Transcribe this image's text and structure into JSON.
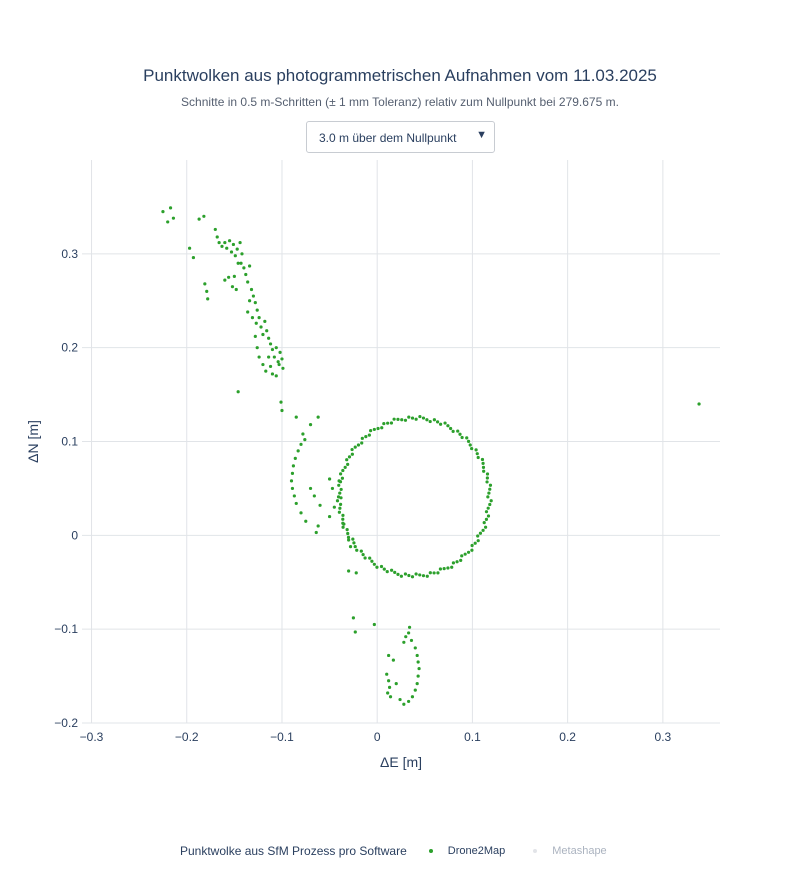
{
  "chart_data": {
    "type": "scatter",
    "title": "Punktwolken aus photogrammetrischen Aufnahmen vom 11.03.2025",
    "subtitle": "Schnitte in 0.5 m-Schritten (± 1 mm Toleranz) relativ zum Nullpunkt bei 279.675 m.",
    "xlabel": "ΔE [m]",
    "ylabel": "ΔN [m]",
    "xlim": [
      -0.31,
      0.36
    ],
    "ylim": [
      -0.2,
      0.4
    ],
    "xticks": [
      -0.3,
      -0.2,
      -0.1,
      0,
      0.1,
      0.2,
      0.3
    ],
    "xtick_labels": [
      "−0.3",
      "−0.2",
      "−0.1",
      "0",
      "0.1",
      "0.2",
      "0.3"
    ],
    "yticks": [
      -0.2,
      -0.1,
      0,
      0.1,
      0.2,
      0.3
    ],
    "ytick_labels": [
      "−0.2",
      "−0.1",
      "0",
      "0.1",
      "0.2",
      "0.3"
    ],
    "grid": true,
    "legend_position": "bottom",
    "legend_title": "Punktwolke aus SfM Prozess pro Software",
    "series": [
      {
        "name": "Drone2Map",
        "color": "#2ca02c",
        "visible": true,
        "points": [
          [
            -0.225,
            0.345
          ],
          [
            -0.22,
            0.334
          ],
          [
            -0.217,
            0.349
          ],
          [
            -0.214,
            0.338
          ],
          [
            -0.197,
            0.306
          ],
          [
            -0.193,
            0.296
          ],
          [
            -0.187,
            0.337
          ],
          [
            -0.182,
            0.34
          ],
          [
            -0.181,
            0.268
          ],
          [
            -0.179,
            0.26
          ],
          [
            -0.178,
            0.252
          ],
          [
            -0.17,
            0.326
          ],
          [
            -0.168,
            0.318
          ],
          [
            -0.166,
            0.312
          ],
          [
            -0.163,
            0.308
          ],
          [
            -0.16,
            0.312
          ],
          [
            -0.158,
            0.306
          ],
          [
            -0.155,
            0.314
          ],
          [
            -0.153,
            0.302
          ],
          [
            -0.151,
            0.31
          ],
          [
            -0.149,
            0.298
          ],
          [
            -0.147,
            0.305
          ],
          [
            -0.146,
            0.29
          ],
          [
            -0.144,
            0.312
          ],
          [
            -0.142,
            0.3
          ],
          [
            -0.16,
            0.272
          ],
          [
            -0.156,
            0.275
          ],
          [
            -0.152,
            0.265
          ],
          [
            -0.15,
            0.276
          ],
          [
            -0.148,
            0.262
          ],
          [
            -0.143,
            0.29
          ],
          [
            -0.14,
            0.285
          ],
          [
            -0.138,
            0.278
          ],
          [
            -0.136,
            0.27
          ],
          [
            -0.134,
            0.287
          ],
          [
            -0.132,
            0.262
          ],
          [
            -0.13,
            0.255
          ],
          [
            -0.128,
            0.248
          ],
          [
            -0.126,
            0.24
          ],
          [
            -0.134,
            0.25
          ],
          [
            -0.136,
            0.238
          ],
          [
            -0.131,
            0.232
          ],
          [
            -0.127,
            0.226
          ],
          [
            -0.124,
            0.232
          ],
          [
            -0.122,
            0.222
          ],
          [
            -0.12,
            0.214
          ],
          [
            -0.118,
            0.228
          ],
          [
            -0.116,
            0.218
          ],
          [
            -0.114,
            0.21
          ],
          [
            -0.112,
            0.204
          ],
          [
            -0.11,
            0.198
          ],
          [
            -0.108,
            0.19
          ],
          [
            -0.106,
            0.2
          ],
          [
            -0.104,
            0.185
          ],
          [
            -0.102,
            0.195
          ],
          [
            -0.1,
            0.188
          ],
          [
            -0.099,
            0.178
          ],
          [
            -0.128,
            0.212
          ],
          [
            -0.126,
            0.2
          ],
          [
            -0.124,
            0.19
          ],
          [
            -0.12,
            0.182
          ],
          [
            -0.117,
            0.175
          ],
          [
            -0.114,
            0.19
          ],
          [
            -0.112,
            0.18
          ],
          [
            -0.11,
            0.172
          ],
          [
            -0.106,
            0.17
          ],
          [
            -0.103,
            0.182
          ],
          [
            -0.146,
            0.153
          ],
          [
            -0.101,
            0.142
          ],
          [
            -0.1,
            0.133
          ],
          [
            -0.085,
            0.126
          ],
          [
            -0.07,
            0.118
          ],
          [
            -0.062,
            0.126
          ],
          [
            -0.078,
            0.108
          ],
          [
            -0.076,
            0.102
          ],
          [
            -0.08,
            0.097
          ],
          [
            -0.083,
            0.09
          ],
          [
            -0.086,
            0.082
          ],
          [
            -0.088,
            0.074
          ],
          [
            -0.089,
            0.066
          ],
          [
            -0.09,
            0.058
          ],
          [
            -0.089,
            0.05
          ],
          [
            -0.087,
            0.042
          ],
          [
            -0.085,
            0.034
          ],
          [
            -0.08,
            0.024
          ],
          [
            -0.075,
            0.015
          ],
          [
            -0.07,
            0.05
          ],
          [
            -0.066,
            0.042
          ],
          [
            -0.06,
            0.032
          ],
          [
            -0.062,
            0.01
          ],
          [
            -0.064,
            0.003
          ],
          [
            -0.05,
            0.06
          ],
          [
            -0.047,
            0.05
          ],
          [
            -0.05,
            0.02
          ],
          [
            -0.045,
            0.03
          ],
          [
            -0.038,
            0.04
          ],
          [
            -0.04,
            0.058
          ],
          [
            -0.035,
            0.012
          ],
          [
            -0.03,
            -0.005
          ],
          [
            -0.028,
            -0.012
          ],
          [
            -0.03,
            -0.038
          ],
          [
            -0.022,
            -0.04
          ],
          [
            -0.025,
            -0.088
          ],
          [
            -0.023,
            -0.103
          ],
          [
            -0.003,
            -0.095
          ],
          [
            0.012,
            -0.128
          ],
          [
            0.017,
            -0.133
          ],
          [
            0.01,
            -0.148
          ],
          [
            0.012,
            -0.155
          ],
          [
            0.013,
            -0.162
          ],
          [
            0.011,
            -0.168
          ],
          [
            0.014,
            -0.172
          ],
          [
            0.02,
            -0.158
          ],
          [
            0.024,
            -0.175
          ],
          [
            0.028,
            -0.18
          ],
          [
            0.033,
            -0.177
          ],
          [
            0.037,
            -0.172
          ],
          [
            0.04,
            -0.165
          ],
          [
            0.042,
            -0.158
          ],
          [
            0.043,
            -0.15
          ],
          [
            0.044,
            -0.142
          ],
          [
            0.043,
            -0.135
          ],
          [
            0.042,
            -0.128
          ],
          [
            0.04,
            -0.12
          ],
          [
            0.036,
            -0.112
          ],
          [
            0.033,
            -0.104
          ],
          [
            0.03,
            -0.108
          ],
          [
            0.034,
            -0.098
          ],
          [
            0.028,
            -0.114
          ],
          [
            0.338,
            0.14
          ]
        ],
        "ring": {
          "center": [
            0.039,
            0.041
          ],
          "radius_x": 0.079,
          "radius_y": 0.084,
          "count": 130
        }
      },
      {
        "name": "Metashape",
        "color": "#cfd3d8",
        "visible": false,
        "points": []
      }
    ]
  },
  "controls": {
    "dropdown_label": "3.0 m über dem Nullpunkt",
    "dropdown_icon": "triangle-down-icon"
  }
}
